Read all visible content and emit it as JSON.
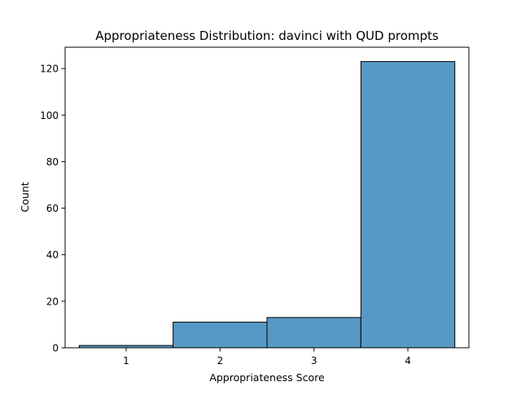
{
  "chart_data": {
    "type": "bar",
    "title": "Appropriateness Distribution: davinci with QUD prompts",
    "xlabel": "Appropriateness Score",
    "ylabel": "Count",
    "categories": [
      "1",
      "2",
      "3",
      "4"
    ],
    "values": [
      1,
      11,
      13,
      123
    ],
    "x_ticks": [
      1,
      2,
      3,
      4
    ],
    "y_ticks": [
      0,
      20,
      40,
      60,
      80,
      100,
      120
    ],
    "xlim": [
      0.35,
      4.65
    ],
    "ylim": [
      0,
      129.15
    ],
    "bar_color": "#5799c6",
    "bar_edge_color": "#000000",
    "grid": false,
    "legend": "none"
  }
}
